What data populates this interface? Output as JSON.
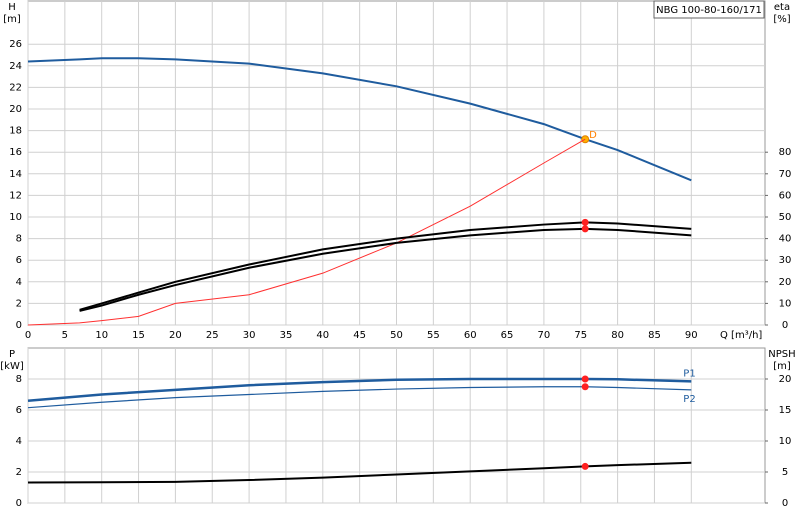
{
  "chart_data": [
    {
      "type": "line",
      "title": "NBG 100-80-160/171",
      "ylabel": "H",
      "yunit": "[m]",
      "y2label": "eta",
      "y2unit": "[%]",
      "xlabel": "Q [m³/h]",
      "x": [
        0,
        7,
        10,
        15,
        20,
        30,
        40,
        50,
        60,
        70,
        75.6,
        80,
        90
      ],
      "xlim": [
        0,
        100
      ],
      "xticks": [
        0,
        5,
        10,
        15,
        20,
        25,
        30,
        35,
        40,
        45,
        50,
        55,
        60,
        65,
        70,
        75,
        80,
        85,
        90
      ],
      "ylim": [
        0,
        30
      ],
      "yticks": [
        0,
        2,
        4,
        6,
        8,
        10,
        12,
        14,
        16,
        18,
        20,
        22,
        24,
        26
      ],
      "y2lim": [
        0,
        150
      ],
      "y2ticks": [
        0,
        10,
        20,
        30,
        40,
        50,
        60,
        70,
        80
      ],
      "grid": true,
      "marker_x": 75.6,
      "marker_label": "D",
      "series": [
        {
          "color": "#1f5c9e",
          "width": 2,
          "marker": "#ffb000",
          "values": [
            24.4,
            24.6,
            24.7,
            24.7,
            24.6,
            24.2,
            23.3,
            22.1,
            20.5,
            18.6,
            17.2,
            16.2,
            13.4
          ]
        },
        {
          "color": "#ff3030",
          "width": 1,
          "axis": "y2",
          "values": [
            0,
            1,
            2,
            4,
            10,
            14,
            24,
            38,
            55,
            75,
            86,
            null,
            null
          ]
        },
        {
          "color": "#000000",
          "width": 2,
          "axis": "y2",
          "marker": "#ff2020",
          "values": [
            null,
            7,
            10,
            15,
            20,
            28,
            35,
            40,
            44,
            46.5,
            47.5,
            47,
            44.5
          ]
        },
        {
          "color": "#000000",
          "width": 2,
          "axis": "y2",
          "marker": "#ff2020",
          "values": [
            null,
            6.5,
            9,
            14,
            18.5,
            26.5,
            33,
            38,
            41.5,
            44,
            44.5,
            44,
            41.5
          ]
        }
      ]
    },
    {
      "type": "line",
      "ylabel": "P",
      "yunit": "[kW]",
      "y2label": "NPSH",
      "y2unit": "[m]",
      "x": [
        0,
        10,
        20,
        30,
        40,
        50,
        60,
        70,
        75.6,
        80,
        90
      ],
      "xlim": [
        0,
        100
      ],
      "ylim": [
        0,
        10
      ],
      "yticks": [
        0,
        2,
        4,
        6,
        8
      ],
      "y2lim": [
        0,
        25
      ],
      "y2ticks": [
        0,
        5,
        10,
        15,
        20
      ],
      "grid": true,
      "marker_x": 75.6,
      "series": [
        {
          "name": "P1",
          "color": "#1f5c9e",
          "width": 2.5,
          "marker": "#ff2020",
          "values": [
            6.6,
            7.0,
            7.3,
            7.6,
            7.8,
            7.95,
            8.0,
            8.0,
            8.0,
            7.98,
            7.85
          ]
        },
        {
          "name": "P2",
          "color": "#1f5c9e",
          "width": 1.2,
          "marker": "#ff2020",
          "values": [
            6.15,
            6.5,
            6.8,
            7.0,
            7.2,
            7.35,
            7.45,
            7.5,
            7.5,
            7.45,
            7.3
          ]
        },
        {
          "color": "#000000",
          "width": 2,
          "axis": "y2",
          "marker": "#ff2020",
          "values": [
            3.3,
            3.35,
            3.4,
            3.7,
            4.1,
            4.6,
            5.1,
            5.6,
            5.9,
            6.1,
            6.5
          ]
        }
      ]
    }
  ]
}
